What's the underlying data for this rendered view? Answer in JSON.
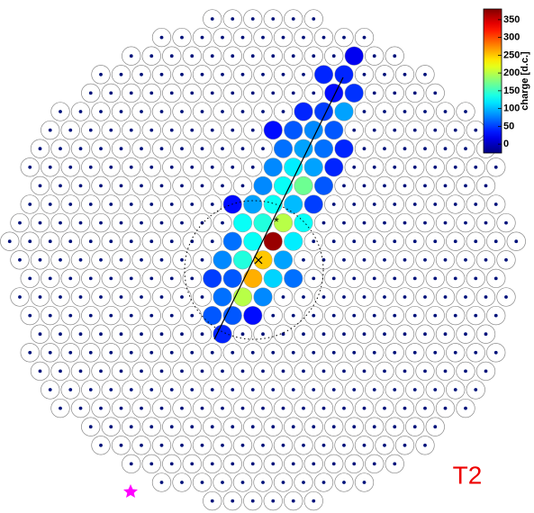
{
  "chart_data": {
    "type": "camera",
    "title": "T2",
    "x": [
      9,
      6,
      8,
      7,
      9,
      4,
      6,
      8,
      1,
      3,
      5,
      7,
      2,
      4,
      6,
      8,
      1,
      3,
      5,
      7,
      0,
      2,
      4,
      6,
      -3,
      -1,
      1,
      3,
      5,
      -2,
      0,
      2,
      4,
      -3,
      -1,
      1,
      3,
      -4,
      -2,
      0,
      2,
      -5,
      -3,
      -1,
      1,
      3,
      -4,
      -2,
      0,
      -5,
      -3,
      -1,
      -4
    ],
    "y": [
      2,
      3,
      3,
      4,
      4,
      5,
      5,
      5,
      6,
      6,
      6,
      6,
      7,
      7,
      7,
      7,
      8,
      8,
      8,
      8,
      9,
      9,
      9,
      9,
      10,
      10,
      10,
      10,
      10,
      11,
      11,
      11,
      11,
      12,
      12,
      12,
      12,
      13,
      13,
      13,
      13,
      14,
      14,
      14,
      14,
      14,
      15,
      15,
      15,
      16,
      16,
      16,
      17
    ],
    "values": [
      20,
      40,
      40,
      30,
      45,
      40,
      50,
      90,
      30,
      60,
      80,
      60,
      70,
      90,
      70,
      40,
      80,
      120,
      90,
      40,
      80,
      130,
      170,
      60,
      30,
      90,
      130,
      100,
      50,
      130,
      140,
      200,
      130,
      70,
      130,
      370,
      120,
      80,
      140,
      250,
      90,
      50,
      60,
      260,
      110,
      70,
      70,
      200,
      80,
      60,
      60,
      30,
      40
    ],
    "colorbar": {
      "label": "charge [d.c.]",
      "colormap": "jet",
      "ylim": [
        -25,
        380
      ],
      "yticks": [
        0,
        50,
        100,
        150,
        200,
        250,
        300,
        350
      ]
    }
  }
}
